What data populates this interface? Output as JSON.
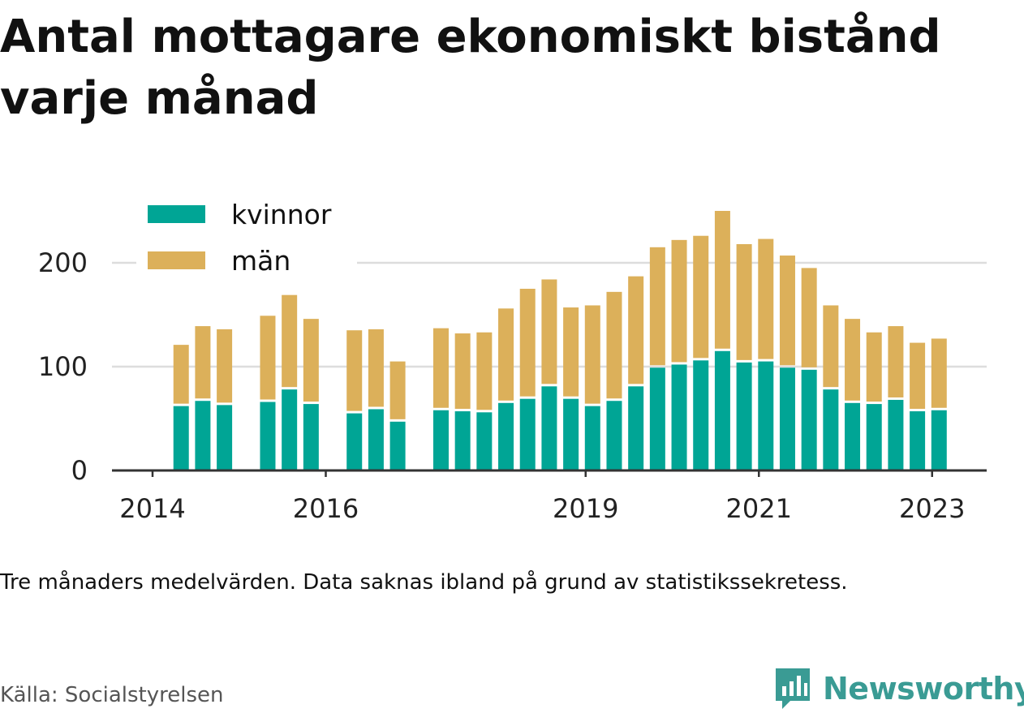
{
  "title": "Antal mottagare ekonomiskt bistånd varje månad",
  "note": "Tre månaders medelvärden. Data saknas ibland på grund av statistikssekretess.",
  "source": "Källa: Socialstyrelsen",
  "brand": "Newsworthy",
  "colors": {
    "kvinnor": "#00a595",
    "man": "#dcb05a",
    "axis": "#333333",
    "grid": "#dddddd"
  },
  "chart_data": {
    "type": "bar",
    "stacked": true,
    "legend_position": "top-left",
    "grid": true,
    "ylim": [
      0,
      250
    ],
    "y_ticks": [
      0,
      100,
      200
    ],
    "x_tick_labels": [
      {
        "label": "2014",
        "at": 2014.0
      },
      {
        "label": "2016",
        "at": 2016.0
      },
      {
        "label": "2019",
        "at": 2019.0
      },
      {
        "label": "2021",
        "at": 2021.0
      },
      {
        "label": "2023",
        "at": 2023.0
      }
    ],
    "x": [
      2014.33,
      2014.58,
      2014.83,
      2015.33,
      2015.58,
      2015.83,
      2016.33,
      2016.58,
      2016.83,
      2017.33,
      2017.58,
      2017.83,
      2018.08,
      2018.33,
      2018.58,
      2018.83,
      2019.08,
      2019.33,
      2019.58,
      2019.83,
      2020.08,
      2020.33,
      2020.58,
      2020.83,
      2021.08,
      2021.33,
      2021.58,
      2021.83,
      2022.08,
      2022.33,
      2022.58,
      2022.83,
      2023.08
    ],
    "series": [
      {
        "name": "kvinnor",
        "values": [
          62,
          67,
          63,
          66,
          78,
          64,
          55,
          59,
          47,
          58,
          57,
          56,
          65,
          69,
          81,
          69,
          62,
          67,
          81,
          99,
          102,
          106,
          115,
          104,
          105,
          99,
          97,
          78,
          65,
          64,
          68,
          57,
          58
        ]
      },
      {
        "name": "män",
        "values": [
          59,
          72,
          73,
          83,
          91,
          82,
          80,
          77,
          58,
          79,
          75,
          77,
          91,
          106,
          103,
          88,
          97,
          105,
          106,
          116,
          120,
          120,
          135,
          114,
          118,
          108,
          98,
          81,
          81,
          69,
          71,
          66,
          69
        ]
      }
    ]
  }
}
